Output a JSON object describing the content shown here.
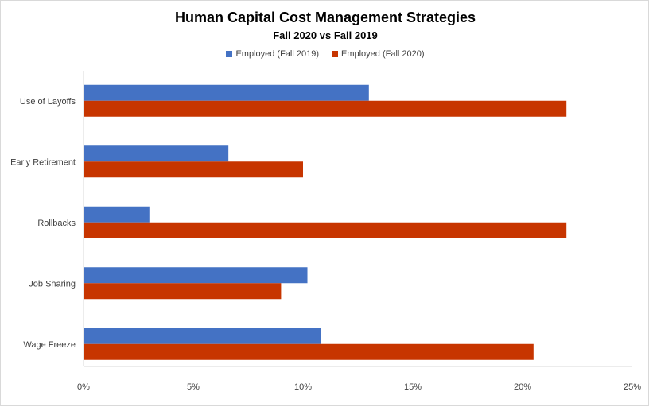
{
  "chart_data": {
    "type": "bar",
    "orientation": "horizontal",
    "title": "Human Capital Cost Management Strategies",
    "subtitle": "Fall 2020  vs Fall 2019",
    "categories": [
      "Use of Layoffs",
      "Early Retirement",
      "Rollbacks",
      "Job Sharing",
      "Wage Freeze"
    ],
    "series": [
      {
        "name": "Employed (Fall 2019)",
        "color": "#4472C4",
        "values": [
          13.0,
          6.6,
          3.0,
          10.2,
          10.8
        ]
      },
      {
        "name": "Employed (Fall 2020)",
        "color": "#C73500",
        "values": [
          22.0,
          10.0,
          22.0,
          9.0,
          20.5
        ]
      }
    ],
    "x_ticks": [
      "0%",
      "5%",
      "10%",
      "15%",
      "20%",
      "25%"
    ],
    "xlim": [
      0,
      25
    ],
    "grid": false,
    "legend_position": "top"
  }
}
